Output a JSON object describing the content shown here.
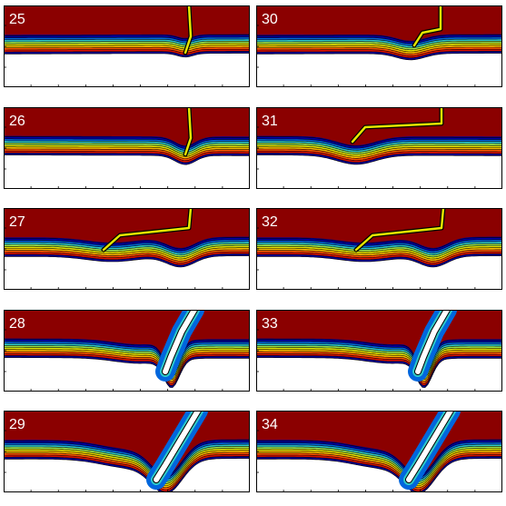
{
  "panels": [
    {
      "label": "25",
      "event": "thin-conduit"
    },
    {
      "label": "26",
      "event": "thin-conduit"
    },
    {
      "label": "27",
      "event": "conduit-plume"
    },
    {
      "label": "28",
      "event": "open-crack"
    },
    {
      "label": "29",
      "event": "wide-crack"
    },
    {
      "label": "30",
      "event": "bent-conduit"
    },
    {
      "label": "31",
      "event": "long-bent-conduit"
    },
    {
      "label": "32",
      "event": "conduit-plume"
    },
    {
      "label": "33",
      "event": "open-crack"
    },
    {
      "label": "34",
      "event": "wide-crack"
    }
  ],
  "colors": {
    "top": "#8b0000",
    "bands": [
      "#aa0000",
      "#dd1100",
      "#ff5500",
      "#ffbb00",
      "#e6e600",
      "#99e64d",
      "#2ec9c9",
      "#0066dd",
      "#0000aa"
    ],
    "bottom": "#000099",
    "void": "#ffffff",
    "contour": "#000000"
  }
}
